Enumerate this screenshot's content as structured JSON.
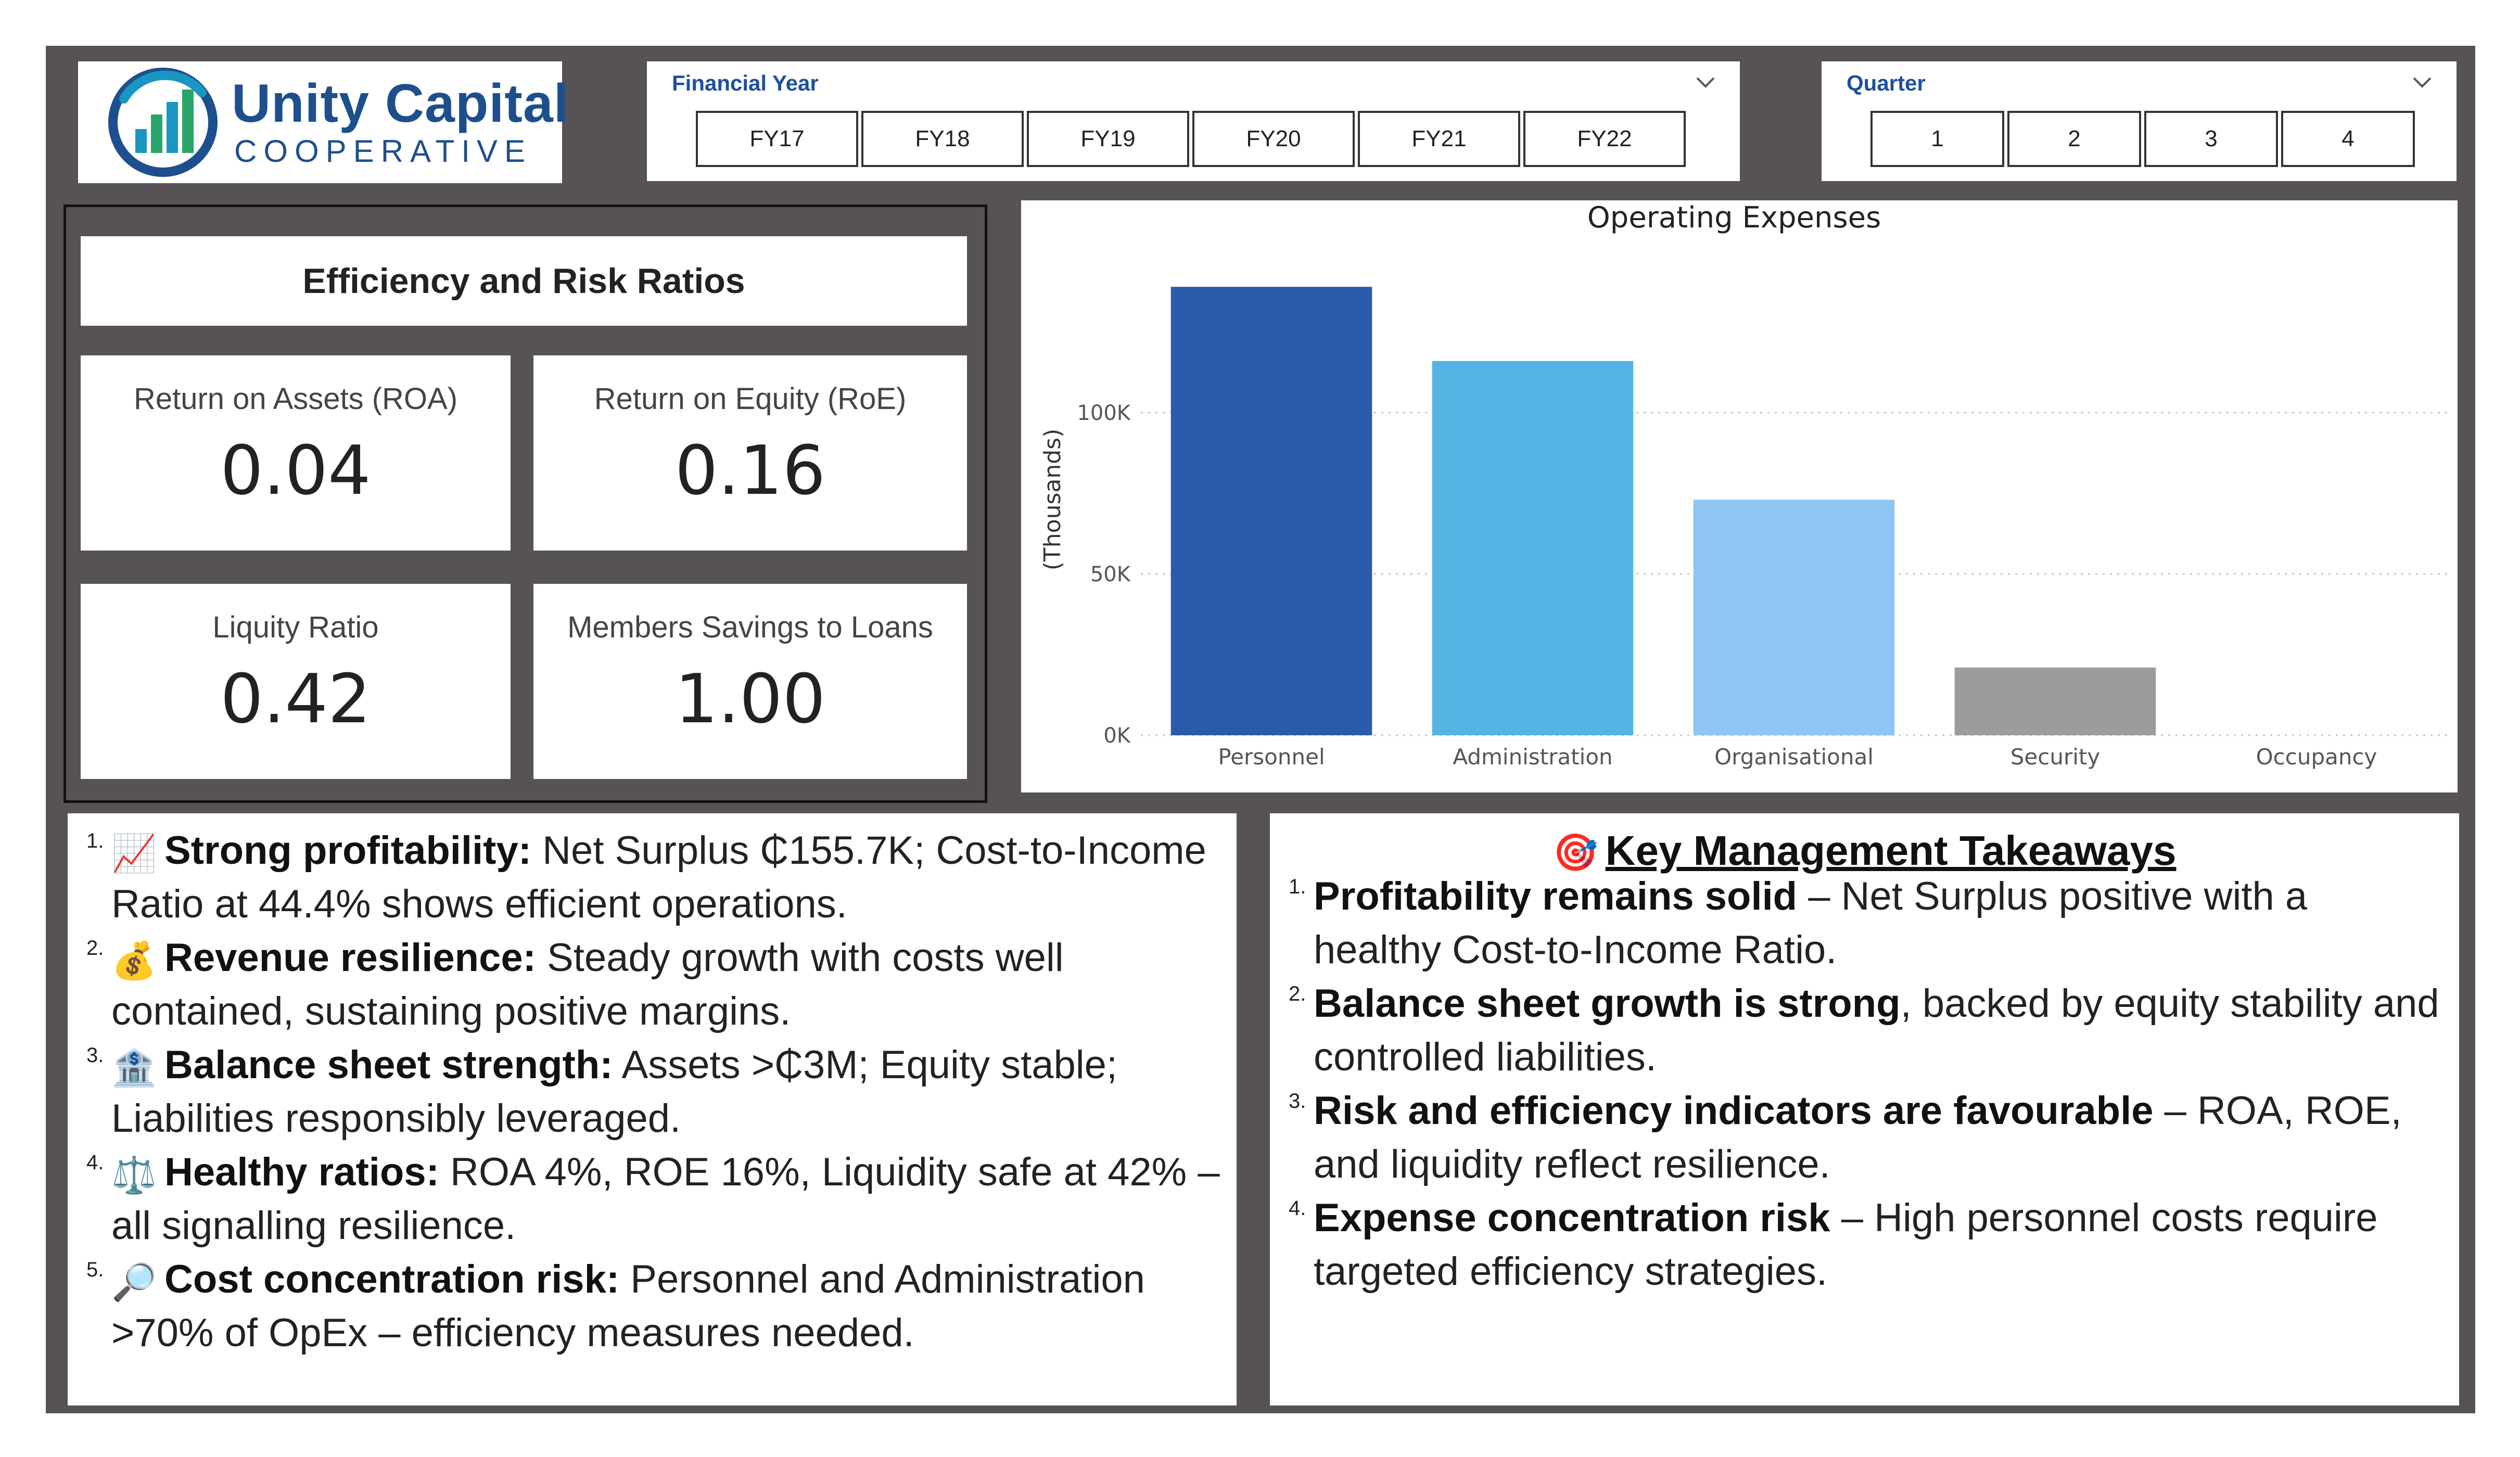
{
  "brand": {
    "name": "Unity Capital",
    "subtitle": "COOPERATIVE",
    "colors": {
      "primary": "#1d4f8c",
      "accent": "#1a96c2",
      "green": "#2aa66a"
    }
  },
  "filters": {
    "financial_year": {
      "title": "Financial Year",
      "options": [
        "FY17",
        "FY18",
        "FY19",
        "FY20",
        "FY21",
        "FY22"
      ]
    },
    "quarter": {
      "title": "Quarter",
      "options": [
        "1",
        "2",
        "3",
        "4"
      ]
    }
  },
  "kpis": {
    "title": "Efficiency and Risk Ratios",
    "cards": [
      {
        "label": "Return on Assets (ROA)",
        "value": "0.04"
      },
      {
        "label": "Return on Equity (RoE)",
        "value": "0.16"
      },
      {
        "label": "Liquity Ratio",
        "value": "0.42"
      },
      {
        "label": "Members Savings to Loans",
        "value": "1.00"
      }
    ]
  },
  "chart_data": {
    "type": "bar",
    "title": "Operating Expenses",
    "ylabel": "(Thousands)",
    "xlabel": "",
    "categories": [
      "Personnel",
      "Administration",
      "Organisational",
      "Security",
      "Occupancy"
    ],
    "values": [
      139,
      116,
      73,
      21,
      0
    ],
    "colors": [
      "#2b5bab",
      "#55b4e6",
      "#8fc5f2",
      "#9c9c9c",
      "#cccccc"
    ],
    "ylim": [
      0,
      150
    ],
    "yticks": [
      0,
      50,
      100
    ],
    "ytick_labels": [
      "0K",
      "50K",
      "100K"
    ],
    "grid": true
  },
  "insights": [
    {
      "num": "1.",
      "emoji": "📈",
      "bold": "Strong profitability:",
      "text": " Net Surplus ₵155.7K; Cost-to-Income Ratio at 44.4% shows efficient operations."
    },
    {
      "num": "2.",
      "emoji": "💰",
      "bold": "Revenue resilience:",
      "text": " Steady growth with costs well contained, sustaining positive margins."
    },
    {
      "num": "3.",
      "emoji": "🏦",
      "bold": "Balance sheet strength:",
      "text": " Assets >₵3M; Equity stable; Liabilities responsibly leveraged."
    },
    {
      "num": "4.",
      "emoji": "⚖️",
      "bold": "Healthy ratios:",
      "text": " ROA 4%, ROE 16%, Liquidity safe at 42% – all signalling resilience."
    },
    {
      "num": "5.",
      "emoji": "🔎",
      "bold": "Cost concentration risk:",
      "text": " Personnel and Administration >70% of OpEx – efficiency measures needed."
    }
  ],
  "takeaways": {
    "emoji": "🎯",
    "title": "Key Management Takeaways",
    "items": [
      {
        "num": "1.",
        "bold": "Profitability remains solid",
        "text": " – Net Surplus positive with a healthy Cost-to-Income Ratio."
      },
      {
        "num": "2.",
        "bold": "Balance sheet growth is strong",
        "text": ", backed by equity stability and controlled liabilities."
      },
      {
        "num": "3.",
        "bold": "Risk and efficiency indicators are favourable",
        "text": " – ROA, ROE, and liquidity reflect resilience."
      },
      {
        "num": "4.",
        "bold": "Expense concentration risk",
        "text": " – High personnel costs require targeted efficiency strategies."
      }
    ]
  }
}
